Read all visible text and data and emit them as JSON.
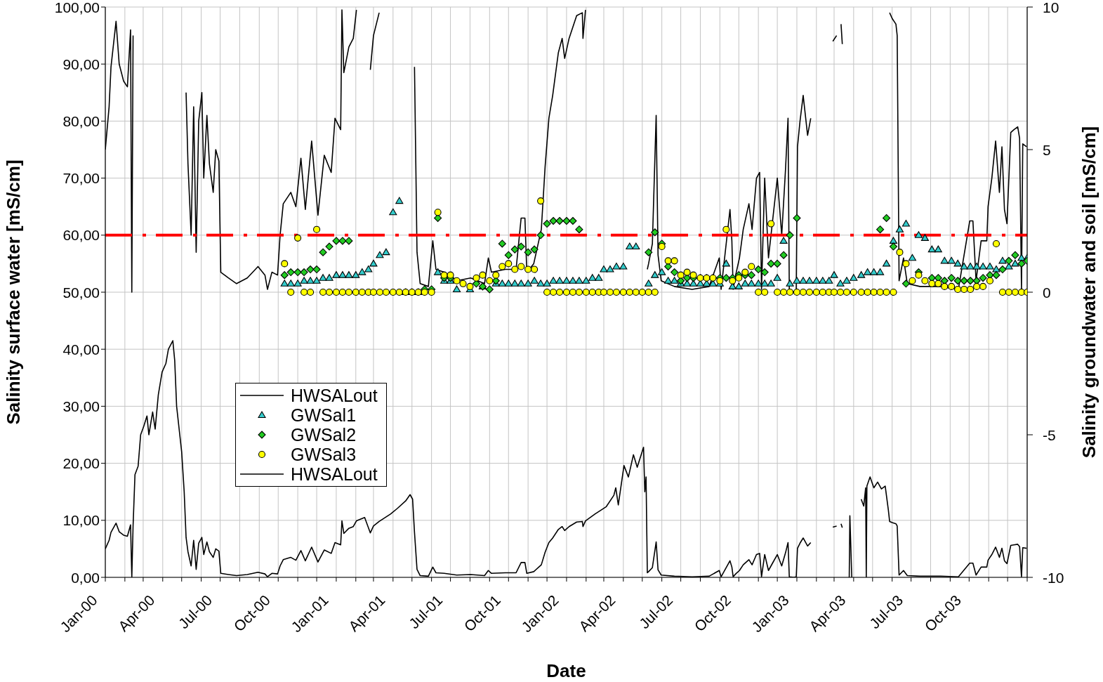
{
  "chart_data": {
    "type": "line",
    "xlabel": "Date",
    "ylabel": "Salinity surface water [mS/cm]",
    "y2label": "Salinity groundwater and soil [mS/cm]",
    "xlim": [
      "2000-01-01",
      "2004-01-01"
    ],
    "xticks": [
      {
        "value": "2000-01-01",
        "label": "Jan-00"
      },
      {
        "value": "2000-02-01",
        "label": null
      },
      {
        "value": "2000-03-01",
        "label": null
      },
      {
        "value": "2000-04-01",
        "label": "Apr-00"
      },
      {
        "value": "2000-05-01",
        "label": null
      },
      {
        "value": "2000-06-01",
        "label": null
      },
      {
        "value": "2000-07-01",
        "label": "Jul-00"
      },
      {
        "value": "2000-08-01",
        "label": null
      },
      {
        "value": "2000-09-01",
        "label": null
      },
      {
        "value": "2000-10-01",
        "label": "Oct-00"
      },
      {
        "value": "2000-11-01",
        "label": null
      },
      {
        "value": "2000-12-01",
        "label": null
      },
      {
        "value": "2001-01-01",
        "label": "Jan-01"
      },
      {
        "value": "2001-02-01",
        "label": null
      },
      {
        "value": "2001-03-01",
        "label": null
      },
      {
        "value": "2001-04-01",
        "label": "Apr-01"
      },
      {
        "value": "2001-05-01",
        "label": null
      },
      {
        "value": "2001-06-01",
        "label": null
      },
      {
        "value": "2001-07-01",
        "label": "Jul-01"
      },
      {
        "value": "2001-08-01",
        "label": null
      },
      {
        "value": "2001-09-01",
        "label": null
      },
      {
        "value": "2001-10-01",
        "label": "Oct-01"
      },
      {
        "value": "2001-11-01",
        "label": null
      },
      {
        "value": "2001-12-01",
        "label": null
      },
      {
        "value": "2002-01-01",
        "label": "Jan-02"
      },
      {
        "value": "2002-02-01",
        "label": null
      },
      {
        "value": "2002-03-01",
        "label": null
      },
      {
        "value": "2002-04-01",
        "label": "Apr-02"
      },
      {
        "value": "2002-05-01",
        "label": null
      },
      {
        "value": "2002-06-01",
        "label": null
      },
      {
        "value": "2002-07-01",
        "label": "Jul-02"
      },
      {
        "value": "2002-08-01",
        "label": null
      },
      {
        "value": "2002-09-01",
        "label": null
      },
      {
        "value": "2002-10-01",
        "label": "Oct-02"
      },
      {
        "value": "2002-11-01",
        "label": null
      },
      {
        "value": "2002-12-01",
        "label": null
      },
      {
        "value": "2003-01-01",
        "label": "Jan-03"
      },
      {
        "value": "2003-02-01",
        "label": null
      },
      {
        "value": "2003-03-01",
        "label": null
      },
      {
        "value": "2003-04-01",
        "label": "Apr-03"
      },
      {
        "value": "2003-05-01",
        "label": null
      },
      {
        "value": "2003-06-01",
        "label": null
      },
      {
        "value": "2003-07-01",
        "label": "Jul-03"
      },
      {
        "value": "2003-08-01",
        "label": null
      },
      {
        "value": "2003-09-01",
        "label": null
      },
      {
        "value": "2003-10-01",
        "label": "Oct-03"
      },
      {
        "value": "2003-11-01",
        "label": null
      },
      {
        "value": "2003-12-01",
        "label": null
      },
      {
        "value": "2004-01-01",
        "label": null
      }
    ],
    "ylim": [
      0,
      100
    ],
    "yticks": [
      {
        "value": 0,
        "label": "0,00"
      },
      {
        "value": 10,
        "label": "10,00"
      },
      {
        "value": 20,
        "label": "20,00"
      },
      {
        "value": 30,
        "label": "30,00"
      },
      {
        "value": 40,
        "label": "40,00"
      },
      {
        "value": 50,
        "label": "50,00"
      },
      {
        "value": 60,
        "label": "60,00"
      },
      {
        "value": 70,
        "label": "70,00"
      },
      {
        "value": 80,
        "label": "80,00"
      },
      {
        "value": 90,
        "label": "90,00"
      },
      {
        "value": 100,
        "label": "100,00"
      }
    ],
    "y2lim": [
      -10,
      10
    ],
    "y2ticks": [
      -10,
      -5,
      0,
      5,
      10
    ],
    "grid": true,
    "legend": "bottom left",
    "ref_lines": [
      {
        "axis": "y",
        "value": 60,
        "color": "#ff0000",
        "line_style": "dashed"
      }
    ],
    "series": [
      {
        "name": "HWSALout",
        "axis": "y2",
        "color": "#000000",
        "x": [
          "2000-01-01",
          "2000-01-07",
          "2000-01-10",
          "2000-01-18",
          "2000-01-23",
          "2000-01-30",
          "2000-02-05",
          "2000-02-10",
          "2000-02-12",
          "2000-02-14",
          "2000-02-17",
          "2000-02-22",
          "2000-02-26",
          "2000-03-02",
          "2000-03-07",
          "2000-03-10",
          "2000-03-16",
          "2000-03-20",
          "2000-03-25",
          "2000-03-31",
          "2000-04-06",
          "2000-04-10",
          "2000-04-17",
          "2000-04-20",
          "2000-04-23",
          "2000-04-28",
          "2000-05-01",
          "2000-05-05",
          "2000-05-08",
          "2000-05-11",
          "2000-05-16",
          "2000-05-20",
          "2000-05-24",
          "2000-05-28",
          "2000-06-02",
          "2000-06-05",
          "2000-06-10",
          "2000-06-14",
          "2000-06-20",
          "2000-06-24",
          "2000-06-29",
          "2000-07-02",
          "2000-07-14",
          "2000-07-27",
          "2000-08-13",
          "2000-08-30",
          "2000-09-10",
          "2000-09-14",
          "2000-09-21",
          "2000-09-30",
          "2000-10-04",
          "2000-10-09",
          "2000-10-21",
          "2000-10-29",
          "2000-11-06",
          "2000-11-13",
          "2000-11-23",
          "2000-12-03",
          "2000-12-13",
          "2000-12-24",
          "2000-12-30",
          "2001-01-08",
          "2001-01-10",
          "2001-01-13",
          "2001-01-21",
          "2001-01-28",
          "2001-02-02",
          "2001-02-15",
          "2001-02-24",
          "2001-03-01",
          "2001-03-10",
          "2001-03-28",
          "2001-04-08",
          "2001-04-21",
          "2001-04-28",
          "2001-05-02",
          "2001-05-05",
          "2001-05-09",
          "2001-05-14",
          "2001-05-27",
          "2001-06-03",
          "2001-06-08",
          "2001-06-21",
          "2001-07-11",
          "2001-08-02",
          "2001-08-24",
          "2001-08-30",
          "2001-09-04",
          "2001-09-26",
          "2001-10-13",
          "2001-10-21",
          "2001-10-27",
          "2001-10-30",
          "2001-11-10",
          "2001-11-22",
          "2001-11-28",
          "2001-12-04",
          "2001-12-10",
          "2001-12-19",
          "2001-12-25",
          "2001-12-29",
          "2002-01-05",
          "2002-01-17",
          "2002-01-26",
          "2002-01-27",
          "2002-01-31",
          "2002-02-15",
          "2002-03-05",
          "2002-03-17",
          "2002-03-20",
          "2002-03-24",
          "2002-04-02",
          "2002-04-09",
          "2002-04-17",
          "2002-04-23",
          "2002-05-03",
          "2002-05-05",
          "2002-05-07",
          "2002-05-09",
          "2002-05-11",
          "2002-05-17",
          "2002-05-23",
          "2002-05-26",
          "2002-05-31",
          "2002-06-21",
          "2002-07-19",
          "2002-08-15",
          "2002-08-31",
          "2002-09-03",
          "2002-09-17",
          "2002-09-20",
          "2002-09-22",
          "2002-09-26",
          "2002-10-02",
          "2002-10-08",
          "2002-10-17",
          "2002-10-22",
          "2002-10-29",
          "2002-11-03",
          "2002-11-06",
          "2002-11-11",
          "2002-11-17",
          "2002-11-23",
          "2002-12-01",
          "2002-12-08",
          "2002-12-14",
          "2002-12-18",
          "2002-12-20",
          "2002-12-27",
          "2002-12-31",
          "2003-01-02",
          "2003-01-06",
          "2003-01-11",
          "2003-01-18",
          "2003-01-23",
          "2003-01-26",
          "2003-02-27",
          "2003-03-05",
          "2003-03-08",
          "2003-03-12",
          "2003-03-14",
          "2003-03-19",
          "2003-03-25",
          "2003-03-26",
          "2003-03-29",
          "2003-04-04",
          "2003-04-13",
          "2003-04-17",
          "2003-04-20",
          "2003-04-21",
          "2003-04-22",
          "2003-04-27",
          "2003-05-03",
          "2003-05-09",
          "2003-05-15",
          "2003-05-21",
          "2003-05-26",
          "2003-05-28",
          "2003-06-01",
          "2003-06-07",
          "2003-06-09",
          "2003-06-12",
          "2003-06-19",
          "2003-06-25",
          "2003-07-15",
          "2003-08-17",
          "2003-09-14",
          "2003-10-02",
          "2003-10-07",
          "2003-10-12",
          "2003-10-20",
          "2003-10-29",
          "2003-10-31",
          "2003-11-06",
          "2003-11-12",
          "2003-11-18",
          "2003-11-22",
          "2003-11-26",
          "2003-11-30",
          "2003-12-06",
          "2003-12-11",
          "2003-12-17",
          "2003-12-20",
          "2003-12-23",
          "2003-12-25",
          "2003-12-31"
        ],
        "values": [
          5.0,
          6.5,
          7.9,
          9.5,
          8.0,
          7.4,
          7.2,
          9.2,
          0,
          9.0,
          null,
          null,
          null,
          null,
          null,
          null,
          null,
          null,
          null,
          null,
          null,
          null,
          null,
          null,
          null,
          null,
          null,
          null,
          7.0,
          4.5,
          2.0,
          6.5,
          1.4,
          6.0,
          7.0,
          4.0,
          6.2,
          4.5,
          3.5,
          5.0,
          4.6,
          0.7,
          0.5,
          0.3,
          0.5,
          0.9,
          0.6,
          0.1,
          0.7,
          0.6,
          2.0,
          3.1,
          3.5,
          3.0,
          4.7,
          2.9,
          5.3,
          2.7,
          4.8,
          4.2,
          6.1,
          5.7,
          9.9,
          7.7,
          8.6,
          8.9,
          9.9,
          null,
          7.8,
          9.0,
          9.8,
          null,
          null,
          null,
          null,
          null,
          7.9,
          1.4,
          0.3,
          0.2,
          1.8,
          0.8,
          0.7,
          0.4,
          0.5,
          0.3,
          1.2,
          0.7,
          0.8,
          0.8,
          2.6,
          2.6,
          0.7,
          1.0,
          2.2,
          4.4,
          6.1,
          6.9,
          8.4,
          8.9,
          8.2,
          8.9,
          9.7,
          9.8,
          8.9,
          9.9,
          null,
          null,
          null,
          null,
          null,
          null,
          null,
          null,
          null,
          null,
          null,
          null,
          0.8,
          1.0,
          1.7,
          6.2,
          1.3,
          0.4,
          0.2,
          0.1,
          0.2,
          1.2,
          0.1,
          2.9,
          1.8,
          0.1,
          0.6,
          1.2,
          2.2,
          3.1,
          2.2,
          4.0,
          4.2,
          0.1,
          4.0,
          1.2,
          2.4,
          4.0,
          2.0,
          4.3,
          6.1,
          0.1,
          0,
          0.1,
          5.1,
          6.0,
          6.9,
          5.5,
          6.1,
          null,
          8.8,
          9.0,
          null,
          9.4,
          8.7,
          null,
          null,
          null,
          null,
          null,
          null,
          null,
          null,
          null,
          null,
          null,
          null,
          null,
          null,
          null,
          null,
          9.8,
          9.6,
          9.4,
          9.0,
          0.4,
          1.2,
          0.3,
          0.2,
          0.2,
          0.1,
          2.5,
          2.5,
          0.4,
          1.8,
          1.8,
          3.0,
          4.0,
          5.3,
          3.5,
          5.1,
          2.9,
          2.4,
          5.6,
          5.7,
          5.8,
          5.4,
          0.1,
          5.2,
          5.1
        ]
      },
      {
        "name": "GWSal1",
        "type": "scatter",
        "axis": "y2",
        "color": "#33cccc",
        "marker": "triangle",
        "x": [
          "2000-10-11",
          "2000-10-21",
          "2000-11-01",
          "2000-11-11",
          "2000-11-21",
          "2000-12-01",
          "2000-12-11",
          "2000-12-21",
          "2001-01-01",
          "2001-01-11",
          "2001-01-21",
          "2001-02-01",
          "2001-02-11",
          "2001-02-21",
          "2001-03-01",
          "2001-03-11",
          "2001-03-21",
          "2001-04-01",
          "2001-04-11",
          "2001-04-21",
          "2001-05-01",
          "2001-05-11",
          "2001-06-11",
          "2001-06-21",
          "2001-07-01",
          "2001-07-11",
          "2001-08-01",
          "2001-08-21",
          "2001-09-11",
          "2001-09-21",
          "2001-10-01",
          "2001-10-11",
          "2001-10-21",
          "2001-11-01",
          "2001-11-11",
          "2001-11-21",
          "2001-12-01",
          "2001-12-11",
          "2001-12-21",
          "2002-01-01",
          "2002-01-11",
          "2002-01-21",
          "2002-02-01",
          "2002-02-11",
          "2002-02-21",
          "2002-03-01",
          "2002-03-11",
          "2002-03-21",
          "2002-04-01",
          "2002-04-11",
          "2002-04-21",
          "2002-05-11",
          "2002-05-21",
          "2002-06-01",
          "2002-06-11",
          "2002-06-21",
          "2002-07-01",
          "2002-07-11",
          "2002-07-21",
          "2002-08-01",
          "2002-08-11",
          "2002-08-21",
          "2002-09-01",
          "2002-09-11",
          "2002-09-21",
          "2002-10-01",
          "2002-10-11",
          "2002-10-21",
          "2002-11-01",
          "2002-11-11",
          "2002-11-21",
          "2002-12-01",
          "2002-12-11",
          "2002-12-21",
          "2003-01-01",
          "2003-01-11",
          "2003-01-21",
          "2003-02-01",
          "2003-02-11",
          "2003-02-21",
          "2003-03-01",
          "2003-03-11",
          "2003-03-21",
          "2003-04-01",
          "2003-04-13",
          "2003-04-23",
          "2003-05-03",
          "2003-05-13",
          "2003-05-23",
          "2003-06-03",
          "2003-06-13",
          "2003-06-23",
          "2003-07-03",
          "2003-07-13",
          "2003-07-23",
          "2003-08-03",
          "2003-08-13",
          "2003-08-23",
          "2003-09-03",
          "2003-09-13",
          "2003-09-23",
          "2003-10-03",
          "2003-10-13",
          "2003-10-23",
          "2003-11-03",
          "2003-11-13",
          "2003-11-23",
          "2003-12-03",
          "2003-12-13",
          "2003-12-23",
          "2004-01-01"
        ],
        "values": [
          0.3,
          0.3,
          0.3,
          0.4,
          0.4,
          0.4,
          0.5,
          0.5,
          0.6,
          0.6,
          0.6,
          0.6,
          0.7,
          0.8,
          1.0,
          1.3,
          1.4,
          2.8,
          3.2,
          0,
          0,
          0,
          0.7,
          0.4,
          0.4,
          0.1,
          0.1,
          0.2,
          0.3,
          0.3,
          0.3,
          0.3,
          0.3,
          0.3,
          0.4,
          0.3,
          0.3,
          0.4,
          0.4,
          0.4,
          0.4,
          0.4,
          0.4,
          0.5,
          0.5,
          0.8,
          0.8,
          0.9,
          0.9,
          1.6,
          1.6,
          0.3,
          0.6,
          0.7,
          0.4,
          0.4,
          0.3,
          0.3,
          0.3,
          0.3,
          0.3,
          0.3,
          0.3,
          1.0,
          0.2,
          0.2,
          0.3,
          0.3,
          0.3,
          0.3,
          0.3,
          0.5,
          1.8,
          0.3,
          0.4,
          0.4,
          0.4,
          0.4,
          0.4,
          0.4,
          0.6,
          0.3,
          0.4,
          0.5,
          0.6,
          0.7,
          0.7,
          0.7,
          1.0,
          1.8,
          2.2,
          2.4,
          1.2,
          2.0,
          1.9,
          1.5,
          1.5,
          1.1,
          1.1,
          1.0,
          0.9,
          0.9,
          0.9,
          0.9,
          0.9,
          0.8,
          1.1,
          0.9,
          1.0,
          1.2,
          1.2
        ]
      },
      {
        "name": "GWSal2",
        "type": "scatter",
        "axis": "y2",
        "color": "#22cc22",
        "marker": "diamond",
        "x": [
          "2000-10-11",
          "2000-10-21",
          "2000-11-01",
          "2000-11-11",
          "2000-11-21",
          "2000-12-01",
          "2000-12-11",
          "2000-12-21",
          "2001-01-01",
          "2001-01-11",
          "2001-01-21",
          "2001-05-21",
          "2001-06-01",
          "2001-06-11",
          "2001-06-21",
          "2001-07-01",
          "2001-08-11",
          "2001-08-21",
          "2001-09-01",
          "2001-09-11",
          "2001-09-21",
          "2001-10-01",
          "2001-10-11",
          "2001-10-21",
          "2001-11-01",
          "2001-11-11",
          "2001-11-21",
          "2001-12-01",
          "2001-12-11",
          "2001-12-21",
          "2002-01-01",
          "2002-01-11",
          "2002-01-21",
          "2002-05-11",
          "2002-05-21",
          "2002-06-01",
          "2002-06-11",
          "2002-06-21",
          "2002-07-01",
          "2002-07-11",
          "2002-07-21",
          "2002-08-01",
          "2002-08-11",
          "2002-08-21",
          "2002-09-01",
          "2002-09-11",
          "2002-09-21",
          "2002-10-01",
          "2002-10-11",
          "2002-10-21",
          "2002-11-01",
          "2002-11-11",
          "2002-11-21",
          "2002-12-01",
          "2002-12-11",
          "2002-12-21",
          "2003-01-01",
          "2003-05-13",
          "2003-05-23",
          "2003-06-03",
          "2003-06-23",
          "2003-07-13",
          "2003-08-03",
          "2003-08-13",
          "2003-08-23",
          "2003-09-03",
          "2003-09-13",
          "2003-09-23",
          "2003-10-03",
          "2003-10-13",
          "2003-10-23",
          "2003-11-03",
          "2003-11-13",
          "2003-11-23",
          "2003-12-03",
          "2003-12-13",
          "2003-12-23",
          "2004-01-01"
        ],
        "values": [
          0.6,
          0.7,
          0.7,
          0.7,
          0.8,
          0.8,
          1.4,
          1.6,
          1.8,
          1.8,
          1.8,
          0.1,
          0.1,
          2.6,
          0.5,
          0.5,
          0.3,
          0.2,
          0.1,
          0.4,
          1.7,
          1.3,
          1.5,
          1.6,
          1.4,
          1.5,
          2.0,
          2.4,
          2.5,
          2.5,
          2.5,
          2.5,
          2.2,
          1.4,
          2.1,
          1.7,
          0.9,
          0.7,
          0.4,
          0.5,
          0.5,
          0.5,
          0.5,
          0.5,
          0.5,
          0.5,
          0.5,
          0.6,
          0.6,
          0.6,
          0.8,
          0.7,
          1.0,
          1.0,
          1.3,
          2.0,
          2.6,
          2.2,
          2.6,
          1.6,
          0.3,
          0.7,
          0.5,
          0.5,
          0.4,
          0.5,
          0.4,
          0.4,
          0.4,
          0.4,
          0.5,
          0.6,
          0.6,
          0.8,
          1.1,
          1.3,
          1.0,
          1.1
        ]
      },
      {
        "name": "GWSal3",
        "type": "scatter",
        "axis": "y2",
        "color": "#ffff00",
        "marker": "circle",
        "x": [
          "2000-10-11",
          "2000-10-21",
          "2000-11-01",
          "2000-11-11",
          "2000-11-21",
          "2000-12-01",
          "2000-12-11",
          "2000-12-21",
          "2001-01-01",
          "2001-01-11",
          "2001-01-21",
          "2001-02-01",
          "2001-02-11",
          "2001-02-21",
          "2001-03-01",
          "2001-03-11",
          "2001-03-21",
          "2001-04-01",
          "2001-04-11",
          "2001-04-21",
          "2001-05-01",
          "2001-05-11",
          "2001-05-21",
          "2001-06-01",
          "2001-06-11",
          "2001-06-21",
          "2001-07-01",
          "2001-07-11",
          "2001-07-21",
          "2001-08-01",
          "2001-08-11",
          "2001-08-21",
          "2001-09-01",
          "2001-09-11",
          "2001-09-21",
          "2001-10-01",
          "2001-10-11",
          "2001-10-21",
          "2001-11-01",
          "2001-11-11",
          "2001-11-21",
          "2001-12-01",
          "2001-12-11",
          "2001-12-21",
          "2002-01-01",
          "2002-01-11",
          "2002-01-21",
          "2002-02-01",
          "2002-02-11",
          "2002-02-21",
          "2002-03-01",
          "2002-03-11",
          "2002-03-21",
          "2002-04-01",
          "2002-04-11",
          "2002-04-21",
          "2002-05-01",
          "2002-05-11",
          "2002-05-21",
          "2002-06-01",
          "2002-06-11",
          "2002-06-21",
          "2002-07-01",
          "2002-07-11",
          "2002-07-21",
          "2002-08-01",
          "2002-08-11",
          "2002-08-21",
          "2002-09-01",
          "2002-09-11",
          "2002-09-21",
          "2002-10-01",
          "2002-10-11",
          "2002-10-21",
          "2002-11-01",
          "2002-11-11",
          "2002-11-21",
          "2002-12-01",
          "2002-12-11",
          "2002-12-21",
          "2003-01-01",
          "2003-01-11",
          "2003-01-21",
          "2003-02-01",
          "2003-02-11",
          "2003-02-21",
          "2003-03-01",
          "2003-03-11",
          "2003-03-21",
          "2003-04-01",
          "2003-04-13",
          "2003-04-23",
          "2003-05-03",
          "2003-05-13",
          "2003-05-23",
          "2003-06-03",
          "2003-06-13",
          "2003-06-23",
          "2003-07-03",
          "2003-07-13",
          "2003-07-23",
          "2003-08-03",
          "2003-08-13",
          "2003-08-23",
          "2003-09-03",
          "2003-09-13",
          "2003-09-23",
          "2003-10-03",
          "2003-10-13",
          "2003-10-23",
          "2003-11-03",
          "2003-11-13",
          "2003-11-23",
          "2003-12-03",
          "2003-12-13",
          "2003-12-23",
          "2004-01-01"
        ],
        "values": [
          1.0,
          0,
          1.9,
          0,
          0,
          2.2,
          0,
          0,
          0,
          0,
          0,
          0,
          0,
          0,
          0,
          0,
          0,
          0,
          0,
          0,
          0,
          0,
          0,
          0,
          2.8,
          0.6,
          0.6,
          0.4,
          0.3,
          0.2,
          0.5,
          0.6,
          0.4,
          0.6,
          0.9,
          1.0,
          0.8,
          0.9,
          0.8,
          0.8,
          3.2,
          0,
          0,
          0,
          0,
          0,
          0,
          0,
          0,
          0,
          0,
          0,
          0,
          0,
          0,
          0,
          0,
          0,
          0,
          1.6,
          1.1,
          1.1,
          0.6,
          0.7,
          0.6,
          0.5,
          0.5,
          0.5,
          0.4,
          2.2,
          0.4,
          0.5,
          0.7,
          0.9,
          0,
          0,
          2.4,
          0,
          0,
          0,
          0,
          0,
          0,
          0,
          0,
          0,
          0,
          0,
          0,
          0,
          0,
          0,
          0,
          0,
          0,
          0,
          1.4,
          1.0,
          0.4,
          0.6,
          0.4,
          0.3,
          0.3,
          0.2,
          0.2,
          0.1,
          0.1,
          0.1,
          0.2,
          0.2,
          0.4,
          1.7,
          0,
          0,
          0,
          0,
          0
        ]
      },
      {
        "name": "HWSALout",
        "color": "#000000",
        "x": [
          "2000-01-01",
          "2000-01-07",
          "2000-01-10",
          "2000-01-18",
          "2000-01-23",
          "2000-01-30",
          "2000-02-05",
          "2000-02-10",
          "2000-02-12",
          "2000-02-14",
          "2000-02-17",
          "2000-02-22",
          "2000-02-26",
          "2000-03-02",
          "2000-03-07",
          "2000-03-10",
          "2000-03-16",
          "2000-03-20",
          "2000-03-25",
          "2000-03-31",
          "2000-04-06",
          "2000-04-10",
          "2000-04-17",
          "2000-04-20",
          "2000-04-23",
          "2000-04-28",
          "2000-05-01",
          "2000-05-05",
          "2000-05-08",
          "2000-05-11",
          "2000-05-16",
          "2000-05-20",
          "2000-05-24",
          "2000-05-28",
          "2000-06-02",
          "2000-06-05",
          "2000-06-10",
          "2000-06-14",
          "2000-06-20",
          "2000-06-24",
          "2000-06-29",
          "2000-07-02",
          "2000-07-14",
          "2000-07-27",
          "2000-08-13",
          "2000-08-30",
          "2000-09-10",
          "2000-09-14",
          "2000-09-21",
          "2000-09-30",
          "2000-10-04",
          "2000-10-09",
          "2000-10-21",
          "2000-10-29",
          "2000-11-06",
          "2000-11-13",
          "2000-11-23",
          "2000-12-03",
          "2000-12-13",
          "2000-12-24",
          "2000-12-30",
          "2001-01-08",
          "2001-01-10",
          "2001-01-13",
          "2001-01-21",
          "2001-01-28",
          "2001-02-02",
          "2001-02-15",
          "2001-02-24",
          "2001-03-01",
          "2001-03-10",
          "2001-03-28",
          "2001-04-08",
          "2001-04-21",
          "2001-04-28",
          "2001-05-02",
          "2001-05-05",
          "2001-05-09",
          "2001-05-14",
          "2001-05-27",
          "2001-06-03",
          "2001-06-08",
          "2001-06-21",
          "2001-07-11",
          "2001-08-02",
          "2001-08-24",
          "2001-08-30",
          "2001-09-04",
          "2001-09-26",
          "2001-10-13",
          "2001-10-21",
          "2001-10-27",
          "2001-10-30",
          "2001-11-10",
          "2001-11-22",
          "2001-11-28",
          "2001-12-04",
          "2001-12-10",
          "2001-12-19",
          "2001-12-25",
          "2001-12-29",
          "2002-01-05",
          "2002-01-17",
          "2002-01-26",
          "2002-01-27",
          "2002-01-31",
          "2002-02-15",
          "2002-03-05",
          "2002-03-17",
          "2002-03-20",
          "2002-03-24",
          "2002-04-02",
          "2002-04-09",
          "2002-04-17",
          "2002-04-23",
          "2002-05-03",
          "2002-05-05",
          "2002-05-07",
          "2002-05-09",
          "2002-05-11",
          "2002-05-17",
          "2002-05-23",
          "2002-05-26",
          "2002-05-31",
          "2002-06-21",
          "2002-07-19",
          "2002-08-15",
          "2002-08-31",
          "2002-09-03",
          "2002-09-17",
          "2002-09-20",
          "2002-09-22",
          "2002-09-26",
          "2002-10-02",
          "2002-10-08",
          "2002-10-17",
          "2002-10-22",
          "2002-10-29",
          "2002-11-03",
          "2002-11-06",
          "2002-11-11",
          "2002-11-17",
          "2002-11-23",
          "2002-12-01",
          "2002-12-08",
          "2002-12-14",
          "2002-12-18",
          "2002-12-20",
          "2002-12-27",
          "2002-12-31",
          "2003-01-02",
          "2003-01-06",
          "2003-01-11",
          "2003-01-18",
          "2003-01-23",
          "2003-01-26",
          "2003-02-27",
          "2003-03-05",
          "2003-03-08",
          "2003-03-12",
          "2003-03-14",
          "2003-03-19",
          "2003-03-25",
          "2003-03-26",
          "2003-03-29",
          "2003-04-04",
          "2003-04-13",
          "2003-04-17",
          "2003-04-20",
          "2003-04-21",
          "2003-04-22",
          "2003-04-27",
          "2003-05-03",
          "2003-05-09",
          "2003-05-15",
          "2003-05-21",
          "2003-05-26",
          "2003-05-28",
          "2003-06-01",
          "2003-06-07",
          "2003-06-09",
          "2003-06-12",
          "2003-06-19",
          "2003-06-25",
          "2003-07-15",
          "2003-08-17",
          "2003-09-14",
          "2003-10-02",
          "2003-10-07",
          "2003-10-12",
          "2003-10-20",
          "2003-10-29",
          "2003-10-31",
          "2003-11-06",
          "2003-11-12",
          "2003-11-18",
          "2003-11-22",
          "2003-11-26",
          "2003-11-30",
          "2003-12-06",
          "2003-12-11",
          "2003-12-17",
          "2003-12-20",
          "2003-12-23",
          "2003-12-25",
          "2003-12-31"
        ],
        "values": [
          5.0,
          6.5,
          7.9,
          9.5,
          8.0,
          7.4,
          7.2,
          9.2,
          0,
          9.0,
          18,
          19.5,
          25,
          26.5,
          28.3,
          25,
          29,
          26,
          32,
          36,
          37.5,
          40,
          41.5,
          38,
          30,
          25,
          22,
          15,
          7.0,
          4.5,
          2.0,
          6.5,
          1.4,
          6.0,
          7.0,
          4.0,
          6.2,
          4.5,
          3.5,
          5.0,
          4.6,
          0.7,
          0.5,
          0.3,
          0.5,
          0.9,
          0.6,
          0.1,
          0.7,
          0.6,
          2.0,
          3.1,
          3.5,
          3.0,
          4.7,
          2.9,
          5.3,
          2.7,
          4.8,
          4.2,
          6.1,
          5.7,
          9.9,
          7.7,
          8.6,
          8.9,
          9.9,
          10.5,
          7.8,
          9.0,
          9.8,
          11.1,
          12.1,
          13.4,
          14.5,
          13.7,
          7.9,
          1.4,
          0.3,
          0.2,
          1.8,
          0.8,
          0.7,
          0.4,
          0.5,
          0.3,
          1.2,
          0.7,
          0.8,
          0.8,
          2.6,
          2.6,
          0.7,
          1.0,
          2.2,
          4.4,
          6.1,
          6.9,
          8.4,
          8.9,
          8.2,
          8.9,
          9.7,
          9.8,
          8.9,
          9.9,
          11.1,
          12.4,
          14.4,
          15.7,
          12.7,
          19.6,
          17.6,
          21.5,
          19.3,
          22.8,
          15,
          17.6,
          0.8,
          1.0,
          1.7,
          6.2,
          1.3,
          0.4,
          0.2,
          0.1,
          0.2,
          1.2,
          0.1,
          2.9,
          1.8,
          0.1,
          0.6,
          1.2,
          2.2,
          3.1,
          2.2,
          4.0,
          4.2,
          0.1,
          4.0,
          1.2,
          2.4,
          4.0,
          2.0,
          4.3,
          6.1,
          0.1,
          0,
          0.1,
          5.1,
          6.0,
          6.9,
          5.5,
          6.1,
          null,
          8.8,
          9.0,
          null,
          9.4,
          8.7,
          null,
          0,
          10.8,
          0,
          null,
          13.7,
          12.5,
          15.7,
          0,
          16,
          17.6,
          15.7,
          16.7,
          15.5,
          16,
          11.8,
          9.8,
          9.6,
          9.4,
          9.0,
          0.4,
          1.2,
          0.3,
          0.2,
          0.2,
          0.1,
          2.5,
          2.5,
          0.4,
          1.8,
          1.8,
          3.0,
          4.0,
          5.3,
          3.5,
          5.1,
          2.9,
          2.4,
          5.6,
          5.7,
          5.8,
          5.4,
          0.1,
          5.2,
          5.1
        ]
      }
    ]
  }
}
